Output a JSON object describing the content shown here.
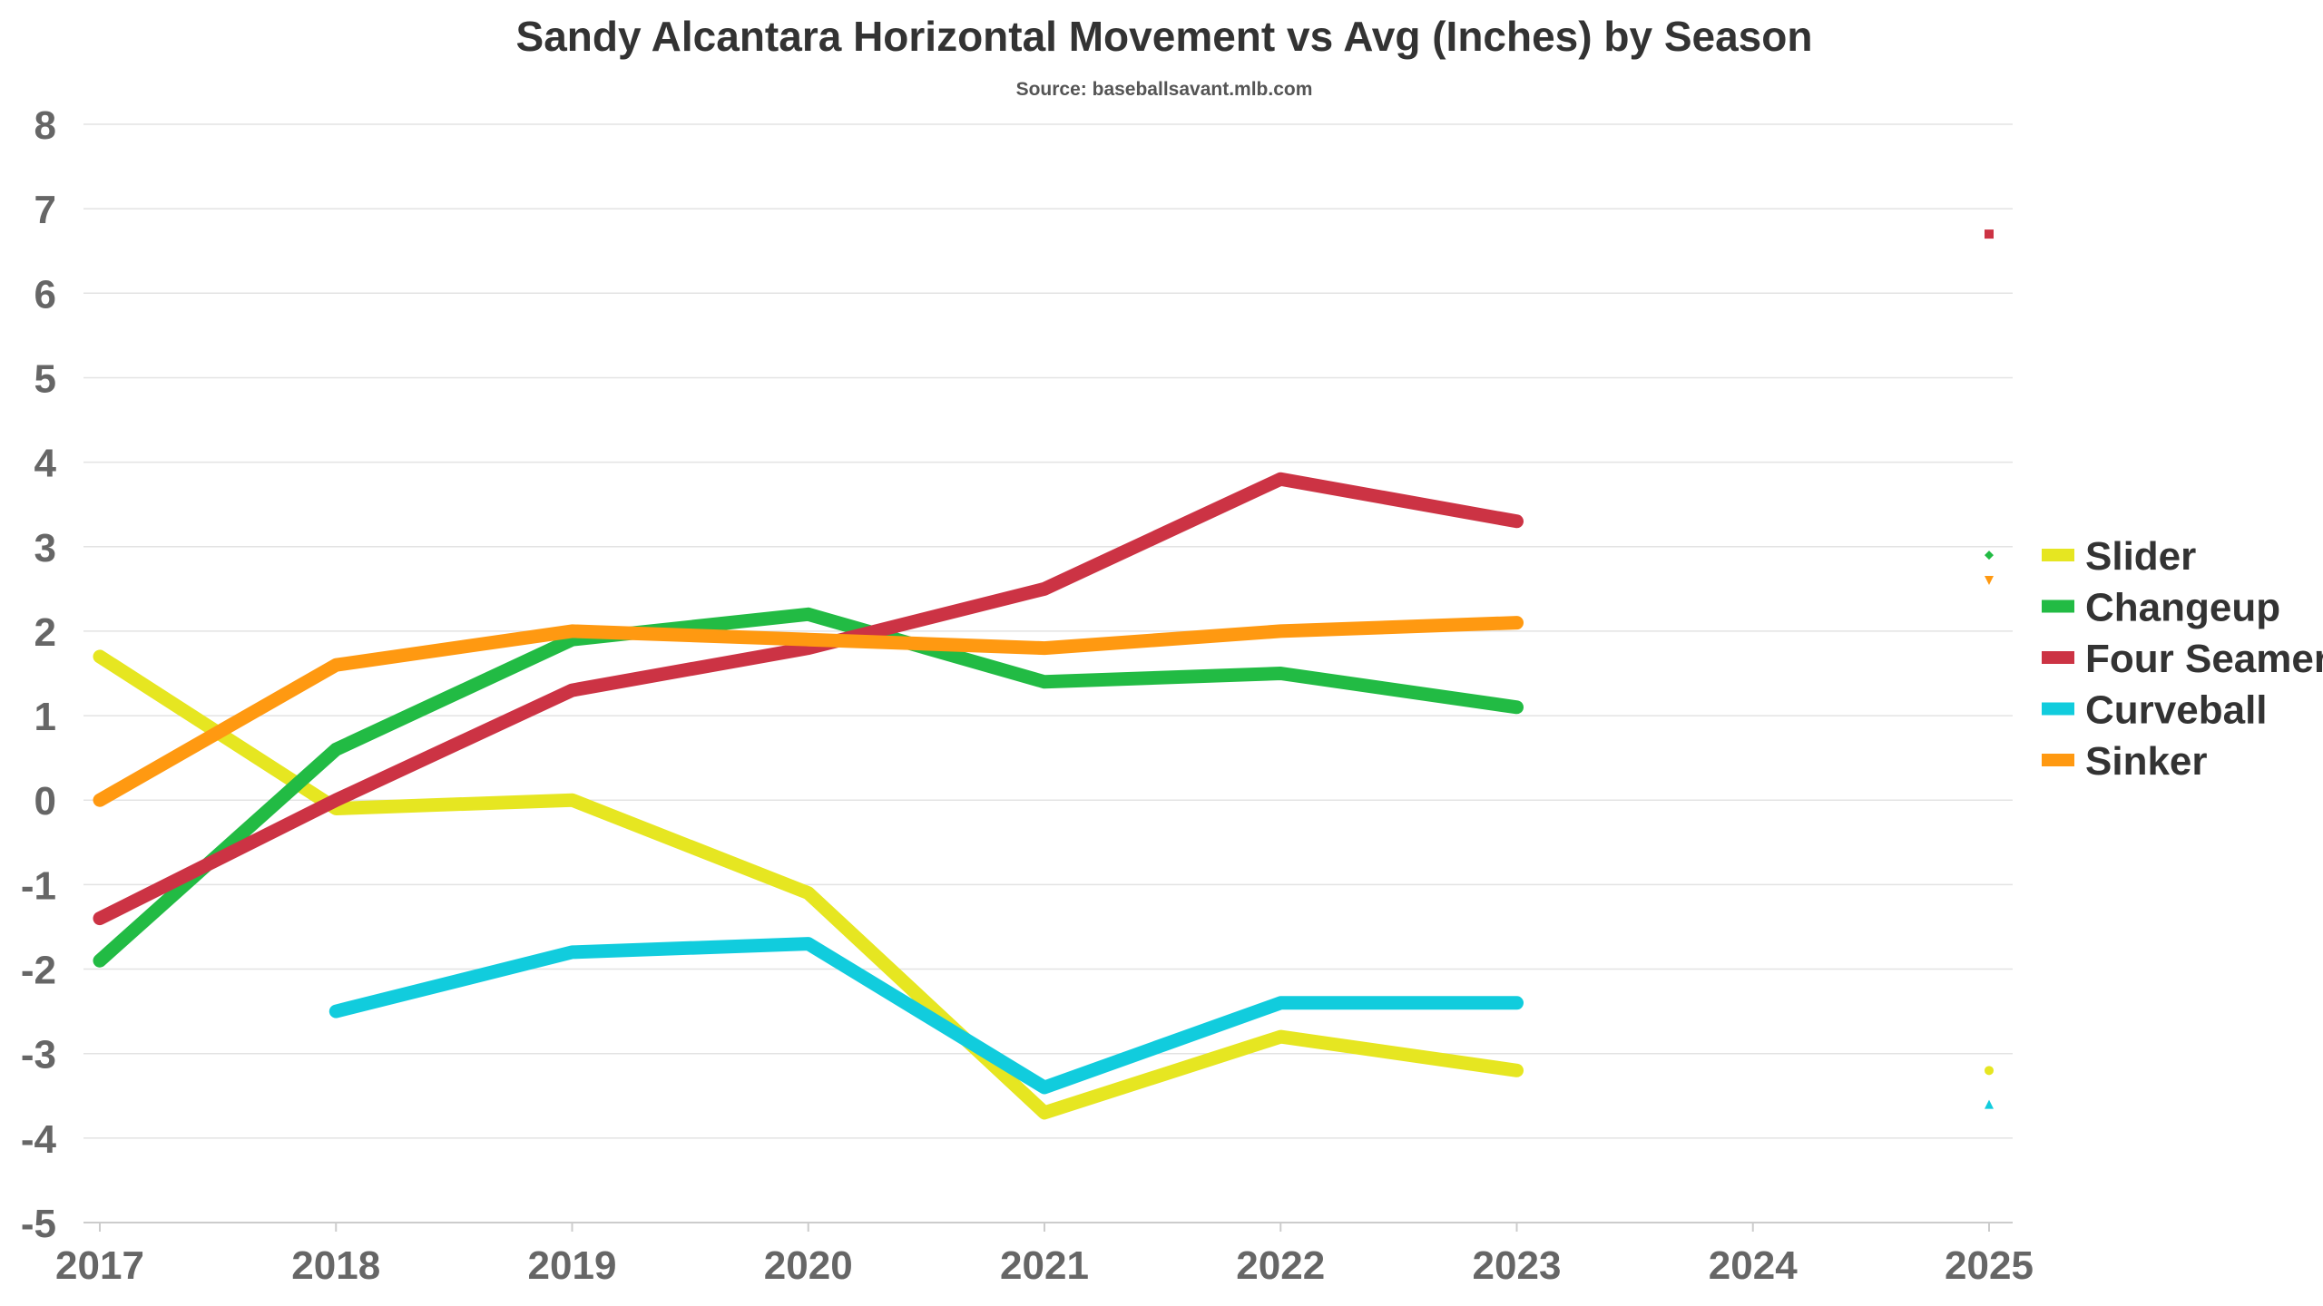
{
  "chart_data": {
    "type": "line",
    "title": "Sandy Alcantara Horizontal Movement vs Avg (Inches) by Season",
    "subtitle": "Source: baseballsavant.mlb.com",
    "xlabel": "",
    "ylabel": "",
    "x": [
      2017,
      2018,
      2019,
      2020,
      2021,
      2022,
      2023,
      2024,
      2025
    ],
    "x_tick_labels": [
      "2017",
      "2018",
      "2019",
      "2020",
      "2021",
      "2022",
      "2023",
      "2024",
      "2025"
    ],
    "ylim": [
      -5,
      8
    ],
    "y_ticks": [
      8,
      7,
      6,
      5,
      4,
      3,
      2,
      1,
      0,
      -1,
      -2,
      -3,
      -4,
      -5
    ],
    "y_tick_labels": [
      "8",
      "7",
      "6",
      "5",
      "4",
      "3",
      "2",
      "1",
      "0",
      "-1",
      "-2",
      "-3",
      "-4",
      "-5"
    ],
    "grid": true,
    "legend_position": "right",
    "series": [
      {
        "name": "Slider",
        "color": "#e6e621",
        "marker": "circle",
        "values": [
          1.7,
          -0.1,
          0.0,
          -1.1,
          -3.7,
          -2.8,
          -3.2,
          null,
          -3.2
        ]
      },
      {
        "name": "Changeup",
        "color": "#22bb44",
        "marker": "diamond",
        "values": [
          -1.9,
          0.6,
          1.9,
          2.2,
          1.4,
          1.5,
          1.1,
          null,
          2.9
        ]
      },
      {
        "name": "Four Seamer",
        "color": "#cc3344",
        "marker": "square",
        "values": [
          -1.4,
          0.0,
          1.3,
          1.8,
          2.5,
          3.8,
          3.3,
          null,
          6.7
        ]
      },
      {
        "name": "Curveball",
        "color": "#11ccdd",
        "marker": "triangle-up",
        "values": [
          null,
          -2.5,
          -1.8,
          -1.7,
          -3.4,
          -2.4,
          -2.4,
          null,
          -3.6
        ]
      },
      {
        "name": "Sinker",
        "color": "#ff9911",
        "marker": "triangle-down",
        "values": [
          0.0,
          1.6,
          2.0,
          1.9,
          1.8,
          2.0,
          2.1,
          null,
          2.6
        ]
      }
    ]
  }
}
